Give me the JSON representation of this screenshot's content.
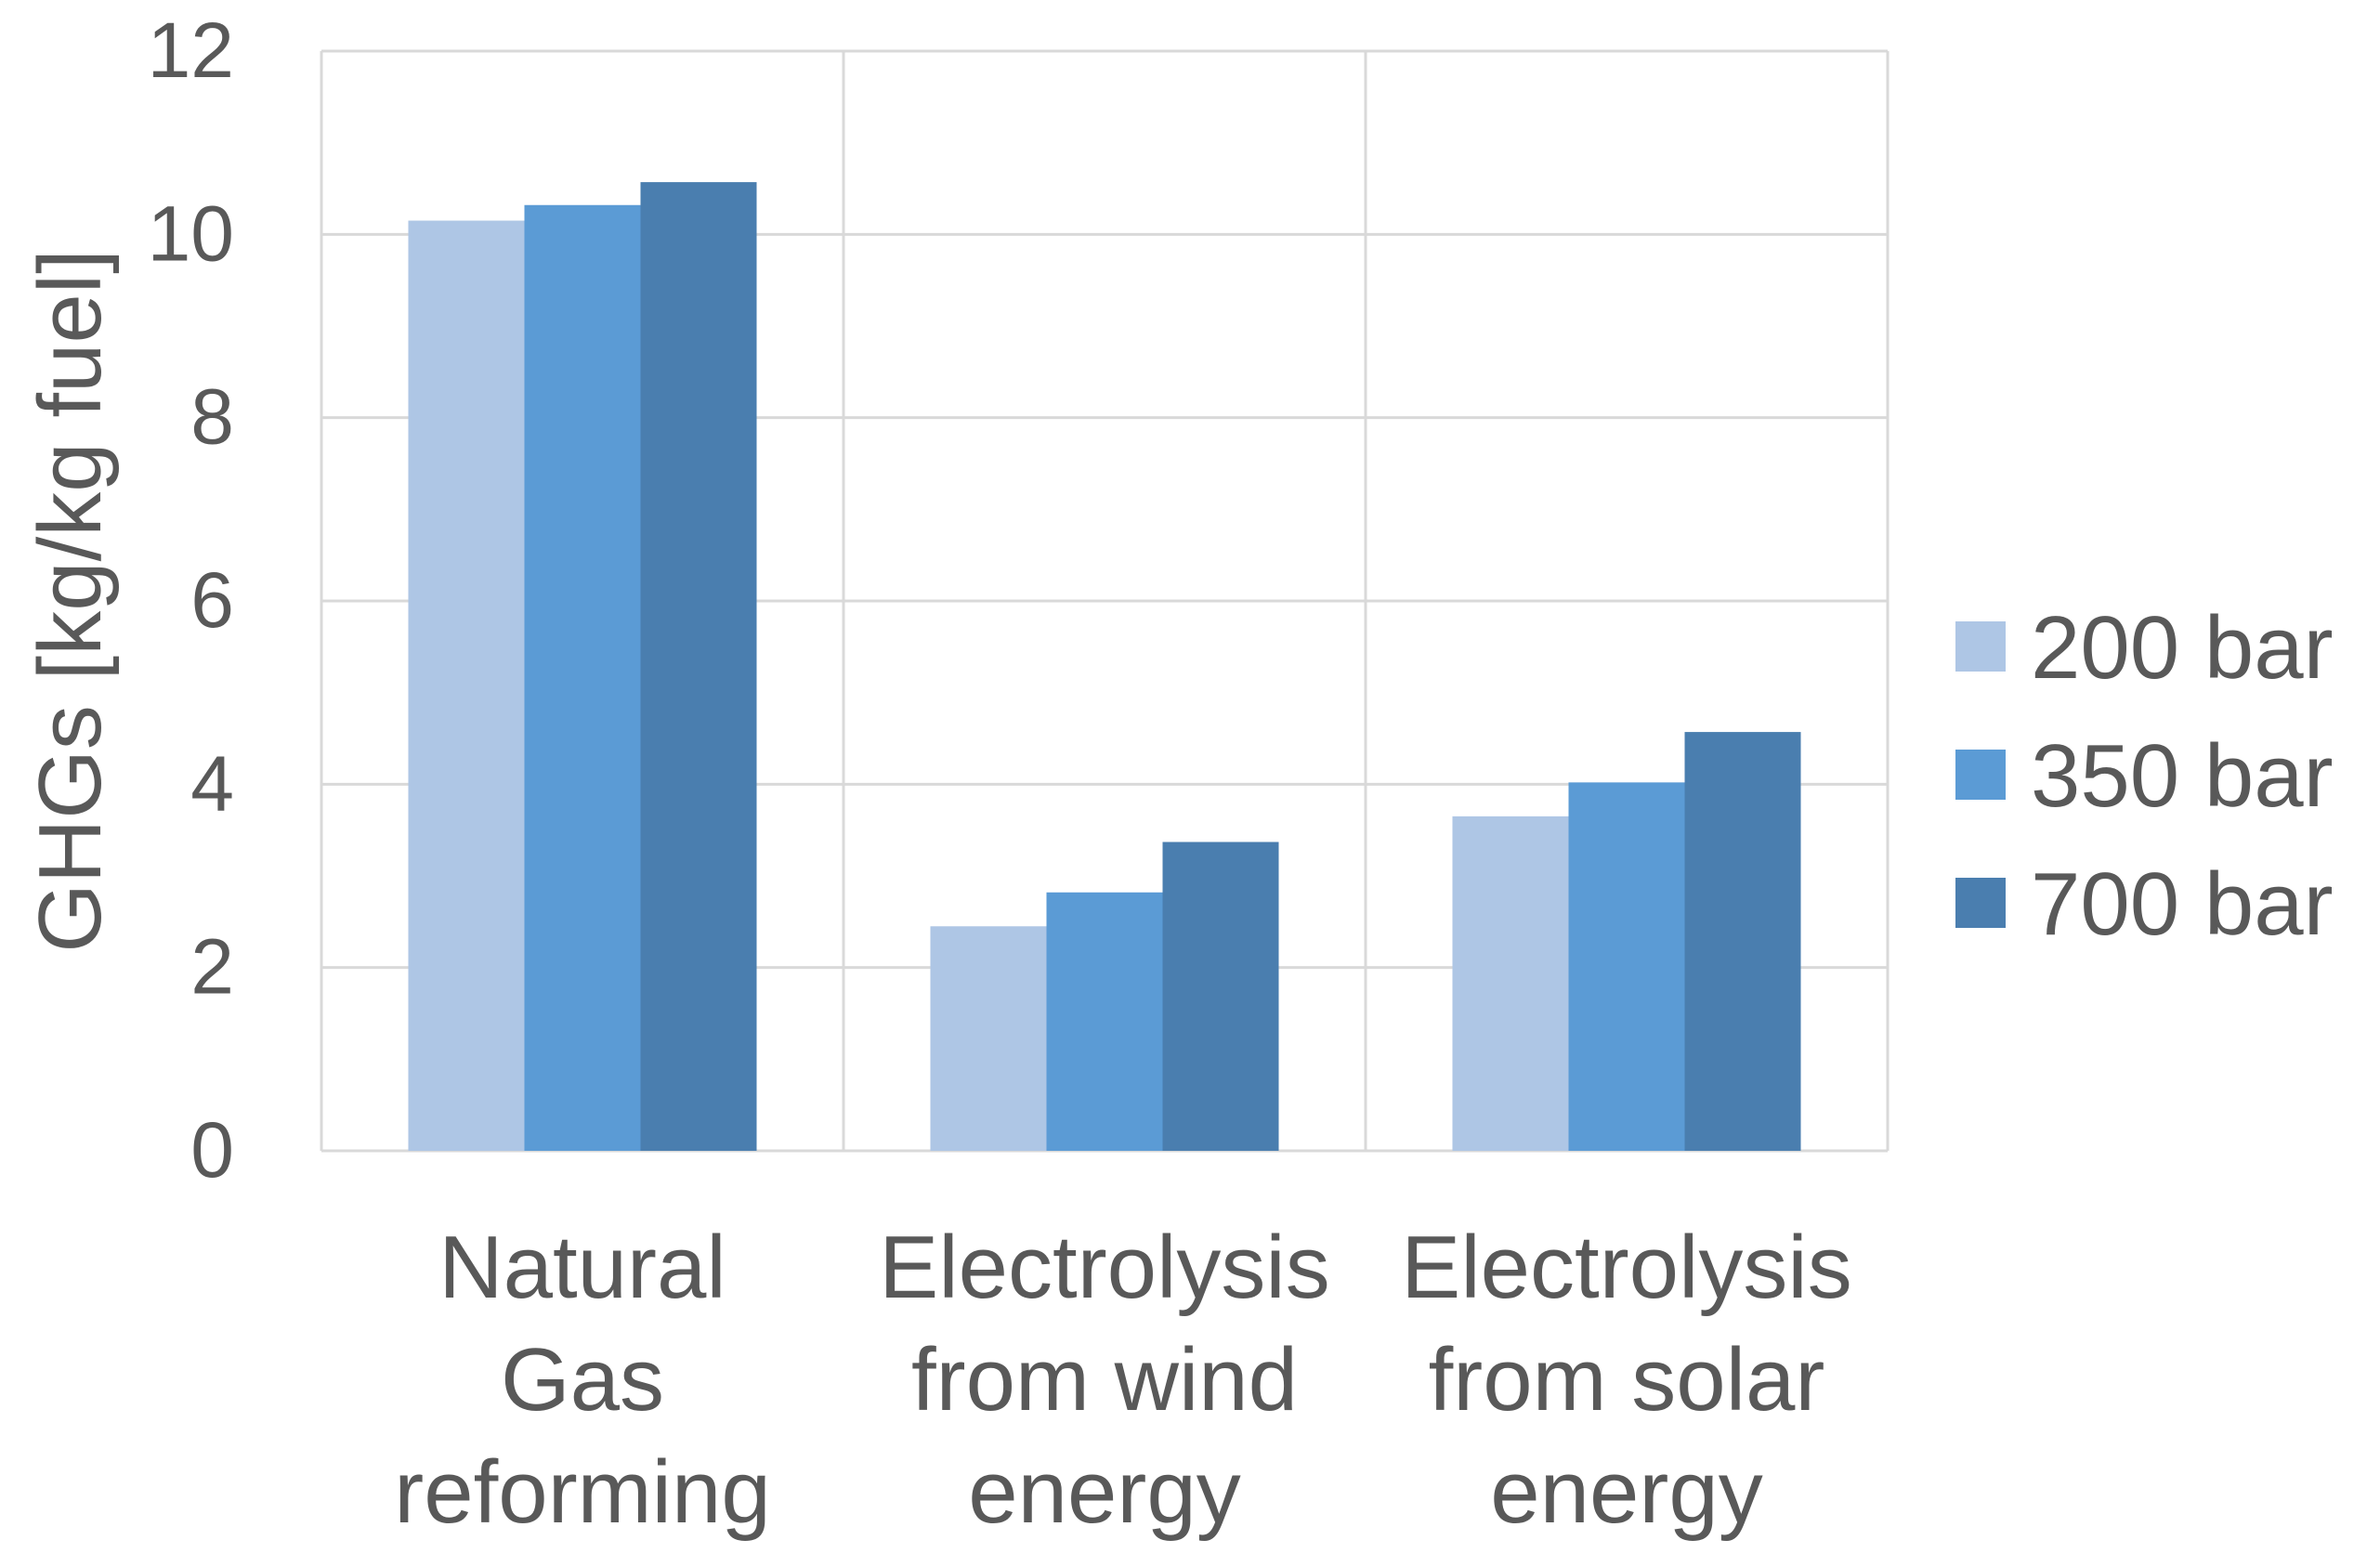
{
  "chart_data": {
    "type": "bar",
    "title": "",
    "xlabel": "",
    "ylabel": "GHGs [kg/kg fuel]",
    "ylim": [
      0,
      12
    ],
    "yticks": [
      "0",
      "2",
      "4",
      "6",
      "8",
      "10",
      "12"
    ],
    "grid": true,
    "legend_position": "right",
    "categories": [
      [
        "Natural",
        "Gas",
        "reforming"
      ],
      [
        "Electrolysis",
        "from wind",
        "energy"
      ],
      [
        "Electrolysis",
        "from solar",
        "energy"
      ]
    ],
    "series": [
      {
        "name": "200 bar",
        "color": "#aec6e5",
        "values": [
          10.15,
          2.45,
          3.65
        ]
      },
      {
        "name": "350 bar",
        "color": "#5b9bd5",
        "values": [
          10.32,
          2.82,
          4.02
        ]
      },
      {
        "name": "700 bar",
        "color": "#4a7eaf",
        "values": [
          10.57,
          3.37,
          4.57
        ]
      }
    ]
  }
}
